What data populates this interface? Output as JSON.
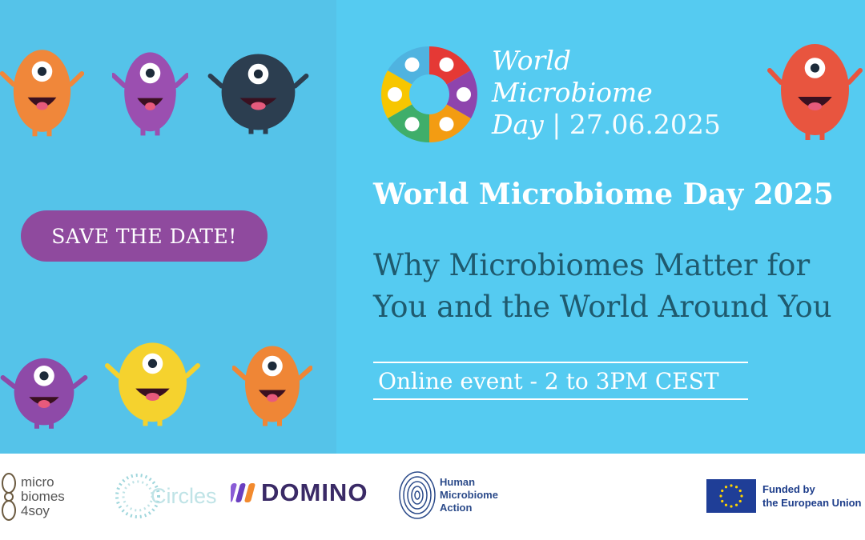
{
  "colors": {
    "left_bg": "#55c3e9",
    "right_bg": "#55cbf1",
    "save_button": "#8f4a9e",
    "subtitle": "#1f5a6e",
    "eu_blue": "#1f3e97",
    "eu_star": "#ffd400"
  },
  "save_the_date": "SAVE THE DATE!",
  "logo": {
    "line1": "World",
    "line2": "Microbiome",
    "line3": "Day",
    "date": "| 27.06.2025",
    "wheel_colors": [
      "#e53935",
      "#8e44ad",
      "#f39c12",
      "#3fae6a",
      "#f7c600",
      "#4fb3e0"
    ],
    "wheel_icons": [
      "head-icon",
      "dog-icon",
      "apple-icon",
      "tree-icon",
      "sprout-icon",
      "water-drop-icon"
    ]
  },
  "title": "World Microbiome Day 2025",
  "subtitle_line1": "Why Microbiomes Matter for",
  "subtitle_line2": "You and the World Around You",
  "event": "Online event - 2 to 3PM CEST",
  "monsters": [
    {
      "name": "orange-monster",
      "color": "#f0873a"
    },
    {
      "name": "purple-monster",
      "color": "#9b4fb0"
    },
    {
      "name": "navy-monster",
      "color": "#2c3e50"
    },
    {
      "name": "red-monster",
      "color": "#e8553f"
    },
    {
      "name": "purple-round-monster",
      "color": "#8e4aa8"
    },
    {
      "name": "yellow-monster",
      "color": "#f5d22e"
    },
    {
      "name": "orange-tall-monster",
      "color": "#ef8636"
    }
  ],
  "partners": {
    "microbiomes4soy": [
      "micro",
      "biomes",
      "4soy"
    ],
    "circles": "Circles",
    "domino": "DOMINO",
    "hma": [
      "Human",
      "Microbiome",
      "Action"
    ],
    "eu": [
      "Funded by",
      "the European Union"
    ]
  }
}
